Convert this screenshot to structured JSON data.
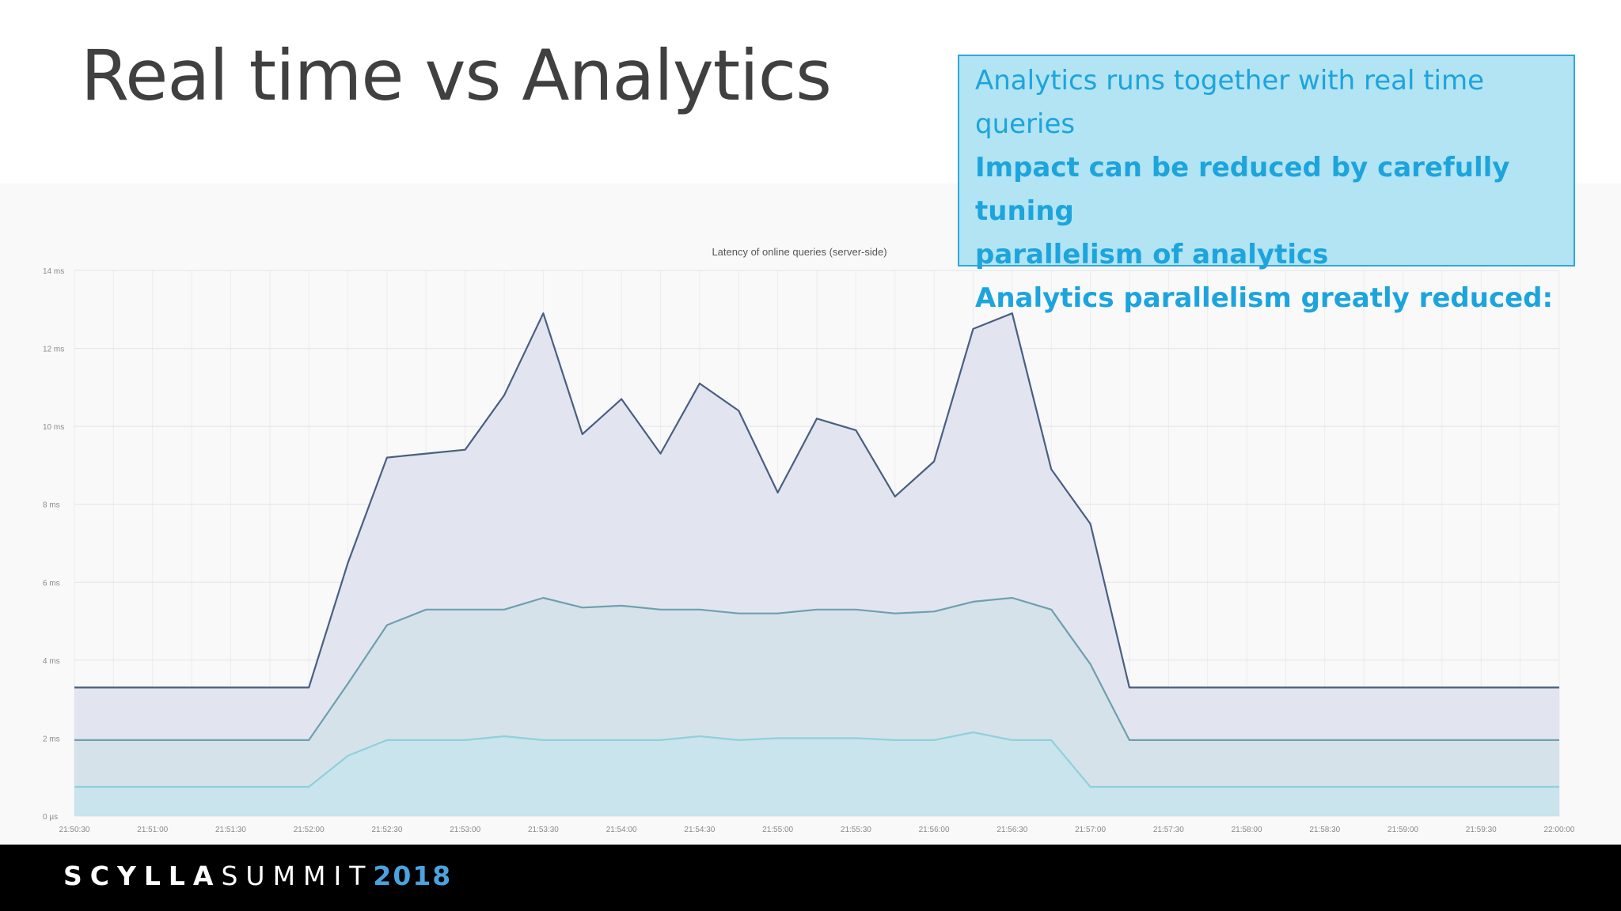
{
  "slide": {
    "title": "Real time vs Analytics"
  },
  "callout": {
    "line1": "Analytics runs together with real time",
    "line2": "queries",
    "line3": "Impact can be reduced by carefully tuning",
    "line4": "parallelism of analytics",
    "line5": "Analytics parallelism greatly reduced:"
  },
  "footer": {
    "brand_scylla": "SCYLLA",
    "brand_summit": "SUMMIT",
    "brand_year": "2018"
  },
  "colors": {
    "title": "#404040",
    "callout_bg": "#b2e4f3",
    "callout_text": "#1da4dc",
    "series_top": "#4a5f80",
    "series_mid": "#6f9fb0",
    "series_low": "#8fd0dc",
    "footer_bg": "#000000",
    "footer_year": "#4aa3df"
  },
  "chart_data": {
    "type": "area",
    "title": "Latency of online queries (server-side)",
    "ylim": [
      0,
      14
    ],
    "y_ticks": [
      "0 µs",
      "2 ms",
      "4 ms",
      "6 ms",
      "8 ms",
      "10 ms",
      "12 ms",
      "14 ms"
    ],
    "x_ticks": [
      "21:50:30",
      "21:51:00",
      "21:51:30",
      "21:52:00",
      "21:52:30",
      "21:53:00",
      "21:53:30",
      "21:54:00",
      "21:54:30",
      "21:55:00",
      "21:55:30",
      "21:56:00",
      "21:56:30",
      "21:57:00",
      "21:57:30",
      "21:58:00",
      "21:58:30",
      "21:59:00",
      "21:59:30",
      "22:00:00"
    ],
    "x": [
      "21:50:30",
      "21:51:00",
      "21:51:30",
      "21:52:00",
      "21:52:15",
      "21:52:30",
      "21:52:45",
      "21:53:00",
      "21:53:15",
      "21:53:30",
      "21:53:45",
      "21:54:00",
      "21:54:15",
      "21:54:30",
      "21:54:45",
      "21:55:00",
      "21:55:15",
      "21:55:30",
      "21:55:45",
      "21:56:00",
      "21:56:15",
      "21:56:30",
      "21:56:45",
      "21:57:00",
      "21:57:15",
      "21:57:30",
      "21:58:00",
      "21:58:30",
      "21:59:00",
      "21:59:30",
      "22:00:00"
    ],
    "series": [
      {
        "values": [
          3.3,
          3.3,
          3.3,
          3.3,
          6.5,
          9.2,
          9.3,
          9.4,
          10.8,
          12.9,
          9.8,
          10.7,
          9.3,
          11.1,
          10.4,
          8.3,
          10.2,
          9.9,
          8.2,
          9.1,
          12.5,
          12.9,
          8.9,
          7.5,
          3.3,
          3.3,
          3.3,
          3.3,
          3.3,
          3.3,
          3.3
        ]
      },
      {
        "values": [
          1.95,
          1.95,
          1.95,
          1.95,
          3.4,
          4.9,
          5.3,
          5.3,
          5.3,
          5.6,
          5.35,
          5.4,
          5.3,
          5.3,
          5.2,
          5.2,
          5.3,
          5.3,
          5.2,
          5.25,
          5.5,
          5.6,
          5.3,
          3.9,
          1.95,
          1.95,
          1.95,
          1.95,
          1.95,
          1.95,
          1.95
        ]
      },
      {
        "values": [
          0.75,
          0.75,
          0.75,
          0.75,
          1.55,
          1.95,
          1.95,
          1.95,
          2.05,
          1.95,
          1.95,
          1.95,
          1.95,
          2.05,
          1.95,
          2.0,
          2.0,
          2.0,
          1.95,
          1.95,
          2.15,
          1.95,
          1.95,
          0.75,
          0.75,
          0.75,
          0.75,
          0.75,
          0.75,
          0.75,
          0.75
        ]
      }
    ],
    "grid": true
  }
}
